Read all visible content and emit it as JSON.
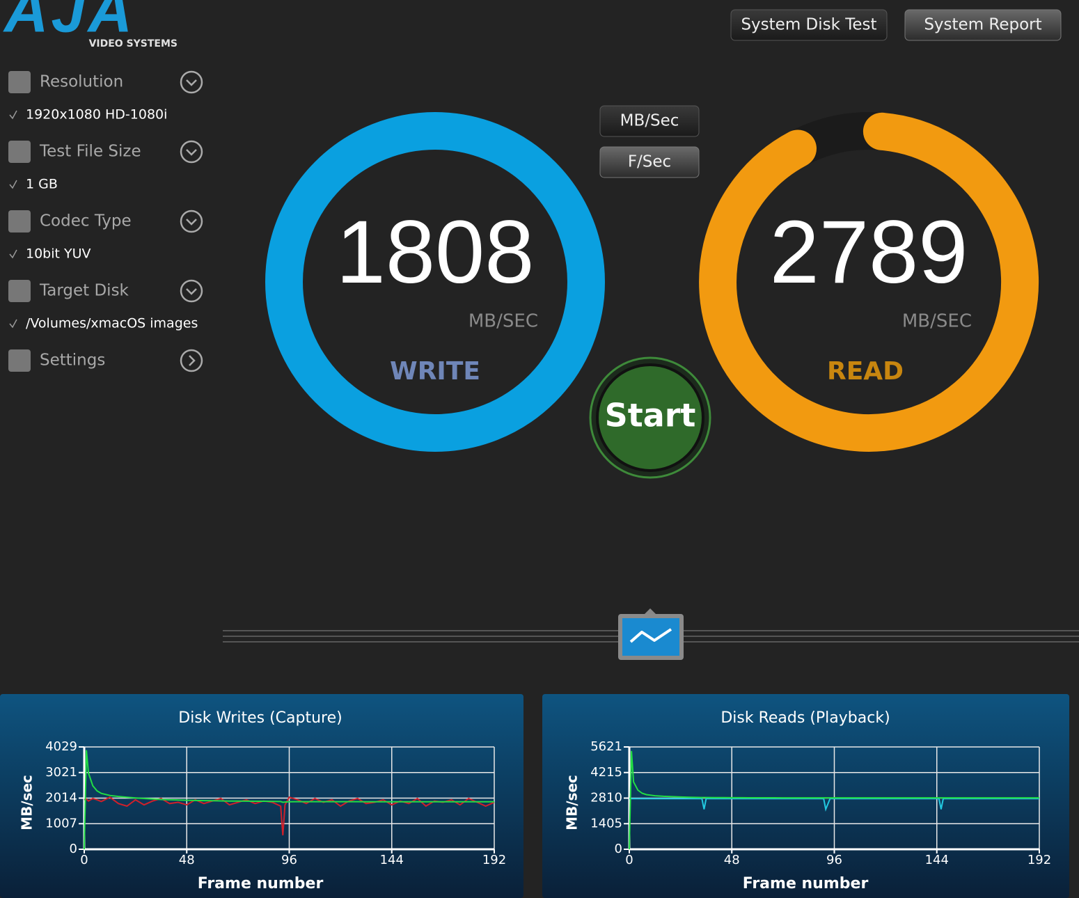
{
  "header": {
    "logo": "AJA",
    "logo_sub": "VIDEO SYSTEMS",
    "buttons": [
      "System Disk Test",
      "System Report"
    ]
  },
  "sidebar": {
    "items": [
      {
        "label": "Resolution",
        "value": "1920x1080 HD-1080i"
      },
      {
        "label": "Test File Size",
        "value": "1 GB"
      },
      {
        "label": "Codec Type",
        "value": "10bit YUV"
      },
      {
        "label": "Target Disk",
        "value": "/Volumes/xmacOS images"
      },
      {
        "label": "Settings"
      }
    ]
  },
  "units_toggle": [
    "MB/Sec",
    "F/Sec"
  ],
  "write": {
    "value": 1808,
    "unit": "MB/SEC",
    "label": "WRITE"
  },
  "read": {
    "value": 2789,
    "unit": "MB/SEC",
    "label": "READ"
  },
  "start": "Start",
  "chart_data": [
    {
      "type": "line",
      "title": "Disk Writes (Capture)",
      "xlabel": "Frame number",
      "ylabel": "MB/sec",
      "xlim": [
        0,
        192
      ],
      "xticks": [
        0,
        48,
        96,
        144,
        192
      ],
      "ylim": [
        0,
        4029
      ],
      "yticks": [
        0,
        1007,
        2014,
        3021,
        4029
      ],
      "grid": true,
      "x": [
        0,
        1,
        2,
        4,
        6,
        8,
        12,
        16,
        20,
        24,
        28,
        32,
        36,
        40,
        44,
        48,
        52,
        56,
        60,
        64,
        68,
        72,
        76,
        80,
        84,
        88,
        92,
        93,
        94,
        96,
        100,
        104,
        108,
        112,
        116,
        120,
        124,
        128,
        132,
        136,
        140,
        144,
        148,
        152,
        156,
        160,
        164,
        168,
        172,
        176,
        180,
        184,
        188,
        192
      ],
      "series": [
        {
          "color": "#22dd44",
          "values": [
            0,
            3900,
            3000,
            2500,
            2300,
            2200,
            2120,
            2080,
            2050,
            2020,
            2000,
            1980,
            1960,
            1950,
            1940,
            1930,
            1920,
            1915,
            1910,
            1905,
            1900,
            1900,
            1895,
            1890,
            1890,
            1885,
            1880,
            1850,
            1860,
            1870,
            1875,
            1875,
            1875,
            1875,
            1875,
            1875,
            1875,
            1875,
            1870,
            1870,
            1870,
            1870,
            1870,
            1870,
            1870,
            1870,
            1870,
            1870,
            1870,
            1870,
            1870,
            1870,
            1870,
            1870
          ]
        },
        {
          "color": "#d0202a",
          "values": [
            1950,
            1980,
            1900,
            2000,
            1950,
            1880,
            2050,
            1800,
            1700,
            1950,
            1750,
            1900,
            2000,
            1800,
            1850,
            1750,
            1950,
            1800,
            1900,
            2000,
            1750,
            1850,
            1950,
            1800,
            1900,
            1850,
            1700,
            550,
            1750,
            2050,
            1950,
            1800,
            2000,
            1850,
            1950,
            1700,
            1900,
            2000,
            1800,
            1850,
            1950,
            1750,
            1900,
            1800,
            2000,
            1700,
            1900,
            1850,
            1950,
            1750,
            2000,
            1850,
            1700,
            1850
          ]
        }
      ]
    },
    {
      "type": "line",
      "title": "Disk Reads (Playback)",
      "xlabel": "Frame number",
      "ylabel": "MB/sec",
      "xlim": [
        0,
        192
      ],
      "xticks": [
        0,
        48,
        96,
        144,
        192
      ],
      "ylim": [
        0,
        5621
      ],
      "yticks": [
        0,
        1405,
        2810,
        4215,
        5621
      ],
      "grid": true,
      "x": [
        0,
        1,
        2,
        4,
        6,
        8,
        12,
        16,
        20,
        24,
        28,
        32,
        34,
        35,
        36,
        40,
        44,
        48,
        52,
        56,
        60,
        64,
        68,
        72,
        76,
        80,
        84,
        88,
        90,
        91,
        92,
        94,
        96,
        100,
        104,
        108,
        112,
        116,
        120,
        124,
        128,
        132,
        136,
        140,
        144,
        145,
        146,
        147,
        148,
        152,
        156,
        160,
        164,
        168,
        172,
        176,
        180,
        184,
        188,
        192
      ],
      "series": [
        {
          "color": "#22dd44",
          "values": [
            0,
            5400,
            3700,
            3250,
            3080,
            3000,
            2940,
            2910,
            2890,
            2870,
            2860,
            2850,
            2845,
            2845,
            2845,
            2840,
            2840,
            2835,
            2835,
            2830,
            2830,
            2830,
            2830,
            2825,
            2825,
            2825,
            2825,
            2825,
            2825,
            2825,
            2825,
            2825,
            2825,
            2825,
            2825,
            2825,
            2825,
            2825,
            2825,
            2825,
            2825,
            2825,
            2825,
            2825,
            2825,
            2825,
            2825,
            2825,
            2825,
            2825,
            2825,
            2825,
            2825,
            2825,
            2825,
            2825,
            2825,
            2825,
            2825,
            2825
          ]
        },
        {
          "color": "#22c8e0",
          "values": [
            2780,
            2780,
            2780,
            2780,
            2780,
            2780,
            2780,
            2780,
            2780,
            2780,
            2780,
            2780,
            2780,
            2200,
            2780,
            2780,
            2780,
            2780,
            2780,
            2780,
            2780,
            2780,
            2780,
            2780,
            2780,
            2780,
            2780,
            2780,
            2780,
            2780,
            2200,
            2780,
            2780,
            2780,
            2780,
            2780,
            2780,
            2780,
            2780,
            2780,
            2780,
            2780,
            2780,
            2780,
            2780,
            2780,
            2200,
            2780,
            2780,
            2780,
            2780,
            2780,
            2780,
            2780,
            2780,
            2780,
            2780,
            2780,
            2780,
            2780
          ]
        }
      ]
    }
  ]
}
